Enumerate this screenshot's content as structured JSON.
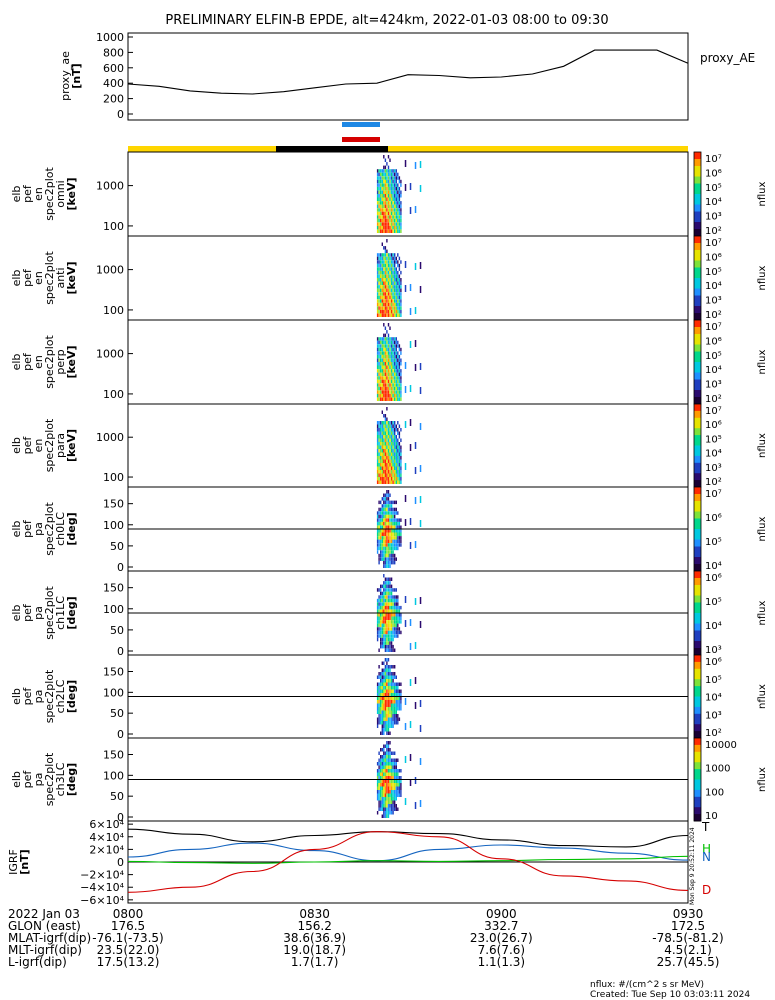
{
  "title": "PRELIMINARY ELFIN-B EPDE, alt=424km, 2022-01-03 08:00 to 09:30",
  "colors": {
    "proxy_line": "#000000",
    "bar_blue": "#1e88e5",
    "bar_red": "#d50000",
    "status_yellow": "#ffd600",
    "status_black": "#000000",
    "igrf_total": "#000000",
    "igrf_h": "#1565c0",
    "igrf_z": "#00c000",
    "igrf_d": "#d50000"
  },
  "side_labels": {
    "proxy": "proxy_AE",
    "igrf_t": "T",
    "igrf_h": "H",
    "igrf_z": "N",
    "igrf_d": "D",
    "colorbar": "nflux",
    "vertical_stamp": "Mon Sep 9 20:52:11 2024"
  },
  "panels": {
    "proxy": {
      "label": [
        "proxy_ae",
        "[nT]"
      ],
      "ticks": [
        "1000",
        "800",
        "600",
        "400",
        "200",
        "0"
      ]
    },
    "spec": [
      {
        "label": [
          "elb",
          "pef",
          "en",
          "spec2plot",
          "omni",
          "[keV]"
        ],
        "ticks": [
          "1000",
          "100"
        ],
        "cbar_ticks": [
          "10⁷",
          "10⁶",
          "10⁵",
          "10⁴",
          "10³",
          "10²"
        ]
      },
      {
        "label": [
          "elb",
          "pef",
          "en",
          "spec2plot",
          "anti",
          "[keV]"
        ],
        "ticks": [
          "1000",
          "100"
        ],
        "cbar_ticks": [
          "10⁷",
          "10⁶",
          "10⁵",
          "10⁴",
          "10³",
          "10²"
        ]
      },
      {
        "label": [
          "elb",
          "pef",
          "en",
          "spec2plot",
          "perp",
          "[keV]"
        ],
        "ticks": [
          "1000",
          "100"
        ],
        "cbar_ticks": [
          "10⁷",
          "10⁶",
          "10⁵",
          "10⁴",
          "10³",
          "10²"
        ]
      },
      {
        "label": [
          "elb",
          "pef",
          "en",
          "spec2plot",
          "para",
          "[keV]"
        ],
        "ticks": [
          "1000",
          "100"
        ],
        "cbar_ticks": [
          "10⁷",
          "10⁶",
          "10⁵",
          "10⁴",
          "10³",
          "10²"
        ]
      }
    ],
    "pa": [
      {
        "label": [
          "elb",
          "pef",
          "pa",
          "spec2plot",
          "ch0LC",
          "[deg]"
        ],
        "ticks": [
          "150",
          "100",
          "50",
          "0"
        ],
        "cbar_ticks": [
          "10⁷",
          "10⁶",
          "10⁵",
          "10⁴"
        ]
      },
      {
        "label": [
          "elb",
          "pef",
          "pa",
          "spec2plot",
          "ch1LC",
          "[deg]"
        ],
        "ticks": [
          "150",
          "100",
          "50",
          "0"
        ],
        "cbar_ticks": [
          "10⁶",
          "10⁵",
          "10⁴",
          "10³"
        ]
      },
      {
        "label": [
          "elb",
          "pef",
          "pa",
          "spec2plot",
          "ch2LC",
          "[deg]"
        ],
        "ticks": [
          "150",
          "100",
          "50",
          "0"
        ],
        "cbar_ticks": [
          "10⁶",
          "10⁵",
          "10⁴",
          "10³",
          "10²"
        ]
      },
      {
        "label": [
          "elb",
          "pef",
          "pa",
          "spec2plot",
          "ch3LC",
          "[deg]"
        ],
        "ticks": [
          "150",
          "100",
          "50",
          "0"
        ],
        "cbar_ticks": [
          "10000",
          "1000",
          "100",
          "10"
        ]
      }
    ],
    "igrf": {
      "label": [
        "IGRF",
        "[nT]"
      ],
      "ticks": [
        "6×10⁴",
        "4×10⁴",
        "2×10⁴",
        "0",
        "−2×10⁴",
        "−4×10⁴",
        "−6×10⁴"
      ]
    }
  },
  "chart_data": {
    "type": "line",
    "time_range": [
      "08:00",
      "09:30"
    ],
    "proxy_ae": {
      "ylabel": "proxy_ae [nT]",
      "ylim": [
        0,
        1000
      ],
      "x_min": [
        0,
        5,
        10,
        15,
        20,
        25,
        30,
        35,
        40,
        45,
        50,
        55,
        60,
        65,
        70,
        75,
        80,
        85,
        90
      ],
      "values": [
        390,
        360,
        300,
        270,
        260,
        290,
        340,
        390,
        400,
        510,
        500,
        470,
        480,
        520,
        620,
        830,
        830,
        830,
        660
      ]
    },
    "flux_interval_min": [
      40,
      44
    ],
    "igrf": {
      "ylabel": "IGRF [nT]",
      "ylim": [
        -65000,
        65000
      ],
      "x_min": [
        0,
        10,
        20,
        30,
        40,
        50,
        60,
        70,
        80,
        90
      ],
      "series": [
        {
          "name": "T",
          "values": [
            52000,
            44000,
            32000,
            42000,
            48000,
            45000,
            35000,
            26000,
            24000,
            42000
          ]
        },
        {
          "name": "H",
          "values": [
            8000,
            20000,
            30000,
            18000,
            2000,
            20000,
            27000,
            22000,
            14000,
            3000
          ]
        },
        {
          "name": "N",
          "values": [
            1000,
            -1000,
            -2000,
            0,
            2000,
            1000,
            2000,
            4000,
            5000,
            9000
          ]
        },
        {
          "name": "D",
          "values": [
            -48000,
            -40000,
            -15000,
            20000,
            48000,
            40000,
            5000,
            -22000,
            -30000,
            -45000
          ]
        }
      ]
    }
  },
  "ephemeris": {
    "rows": [
      {
        "label": "2022 Jan 03",
        "values": [
          "0800",
          "0830",
          "0900",
          "0930"
        ]
      },
      {
        "label": "GLON (east)",
        "values": [
          "176.5",
          "156.2",
          "332.7",
          "172.5"
        ]
      },
      {
        "label": "MLAT-igrf(dip)",
        "values": [
          "-76.1(-73.5)",
          "38.6(36.9)",
          "23.0(26.7)",
          "-78.5(-81.2)"
        ]
      },
      {
        "label": "MLT-igrf(dip)",
        "values": [
          "23.5(22.0)",
          "19.0(18.7)",
          "7.6(7.6)",
          "4.5(2.1)"
        ]
      },
      {
        "label": "L-igrf(dip)",
        "values": [
          "17.5(13.2)",
          "1.7(1.7)",
          "1.1(1.3)",
          "25.7(45.5)"
        ]
      }
    ]
  },
  "footer": {
    "units": "nflux: #/(cm^2 s sr MeV)",
    "created": "Created: Tue Sep 10 03:03:11 2024"
  }
}
